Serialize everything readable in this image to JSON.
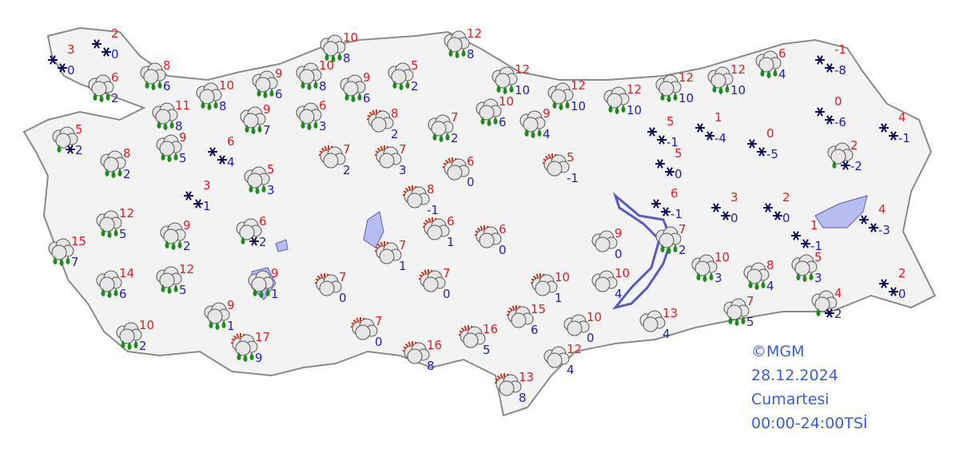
{
  "stations": [
    {
      "max": 3,
      "min": 0
    },
    {
      "max": 2,
      "min": 0
    },
    {
      "max": 6,
      "min": 2
    },
    {
      "max": 8,
      "min": 6
    },
    {
      "max": 11,
      "min": 8
    },
    {
      "max": 10,
      "min": 8
    },
    {
      "max": 5,
      "min": 2
    },
    {
      "max": 8,
      "min": 2
    },
    {
      "max": 9,
      "min": 5
    },
    {
      "max": 6,
      "min": 4
    },
    {
      "max": 5,
      "min": 3
    },
    {
      "max": 3,
      "min": 1
    },
    {
      "max": 12,
      "min": 5
    },
    {
      "max": 9,
      "min": 2
    },
    {
      "max": 6,
      "min": 2
    },
    {
      "max": 15,
      "min": 7
    },
    {
      "max": 14,
      "min": 6
    },
    {
      "max": 12,
      "min": 5
    },
    {
      "max": 9,
      "min": 1
    },
    {
      "max": 9,
      "min": 1
    },
    {
      "max": 10,
      "min": 2
    },
    {
      "max": 17,
      "min": 9
    },
    {
      "max": 9,
      "min": 6
    },
    {
      "max": 9,
      "min": 7
    },
    {
      "max": 10,
      "min": 8
    },
    {
      "max": 6,
      "min": 3
    },
    {
      "max": 10,
      "min": 8
    },
    {
      "max": 9,
      "min": 6
    },
    {
      "max": 5,
      "min": 2
    },
    {
      "max": 12,
      "min": 8
    },
    {
      "max": 12,
      "min": 10
    },
    {
      "max": 12,
      "min": 10
    },
    {
      "max": 12,
      "min": 10
    },
    {
      "max": 12,
      "min": 10
    },
    {
      "max": 12,
      "min": 10
    },
    {
      "max": 6,
      "min": 4
    },
    {
      "max": -1,
      "min": -8
    },
    {
      "max": 0,
      "min": -6
    },
    {
      "max": 4,
      "min": -1
    },
    {
      "max": 2,
      "min": -2
    },
    {
      "max": 0,
      "min": -5
    },
    {
      "max": 1,
      "min": -4
    },
    {
      "max": 5,
      "min": -1
    },
    {
      "max": 5,
      "min": 0
    },
    {
      "max": 6,
      "min": -1
    },
    {
      "max": 3,
      "min": 0
    },
    {
      "max": 2,
      "min": 0
    },
    {
      "max": 1,
      "min": -1
    },
    {
      "max": 4,
      "min": -3
    },
    {
      "max": 7,
      "min": 2
    },
    {
      "max": 10,
      "min": 3
    },
    {
      "max": 8,
      "min": 4
    },
    {
      "max": 5,
      "min": 3
    },
    {
      "max": 4,
      "min": 2
    },
    {
      "max": 2,
      "min": 0
    },
    {
      "max": 7,
      "min": 5
    },
    {
      "max": 8,
      "min": 2
    },
    {
      "max": 7,
      "min": 2
    },
    {
      "max": 10,
      "min": 6
    },
    {
      "max": 9,
      "min": 4
    },
    {
      "max": 7,
      "min": 2
    },
    {
      "max": 7,
      "min": 3
    },
    {
      "max": 6,
      "min": 0
    },
    {
      "max": 5,
      "min": -1
    },
    {
      "max": 8,
      "min": -1
    },
    {
      "max": 6,
      "min": 1
    },
    {
      "max": 6,
      "min": 0
    },
    {
      "max": 7,
      "min": 1
    },
    {
      "max": 7,
      "min": 0
    },
    {
      "max": 7,
      "min": 0
    },
    {
      "max": 7,
      "min": 0
    },
    {
      "max": 10,
      "min": 1
    },
    {
      "max": 9,
      "min": 0
    },
    {
      "max": 10,
      "min": 4
    },
    {
      "max": 10,
      "min": 0
    },
    {
      "max": 13,
      "min": 4
    },
    {
      "max": 15,
      "min": 6
    },
    {
      "max": 16,
      "min": 5
    },
    {
      "max": 16,
      "min": 8
    },
    {
      "max": 12,
      "min": 4
    },
    {
      "max": 13,
      "min": 8
    }
  ],
  "credit": "©MGM",
  "date": "28.12.2024",
  "day": "Cumartesi",
  "period": "00:00-24:00TSİ"
}
